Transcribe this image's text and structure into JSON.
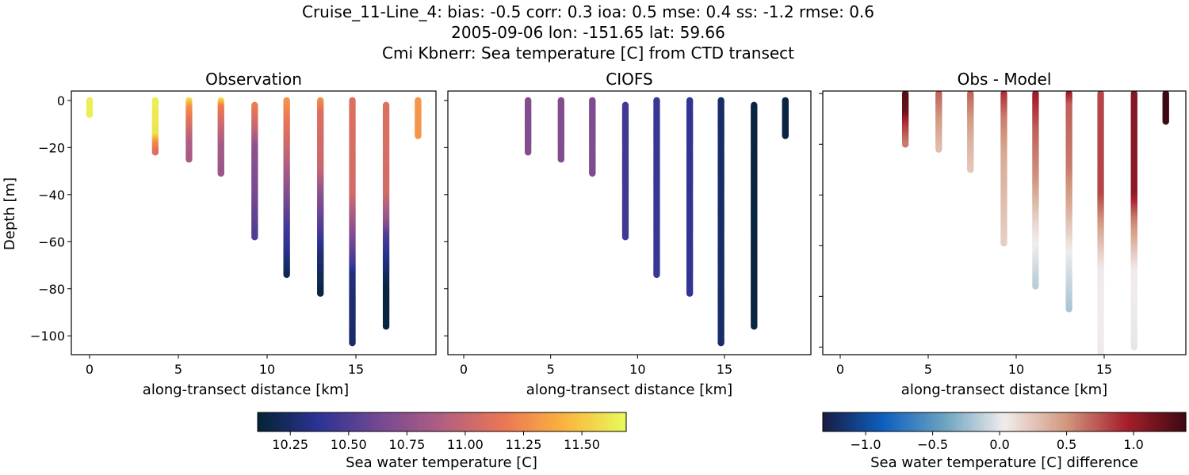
{
  "title_lines": [
    "Cruise_11-Line_4: bias: -0.5  corr: 0.3  ioa: 0.5  mse: 0.4  ss: -1.2  rmse: 0.6",
    "2005-09-06 lon: -151.65 lat: 59.66",
    "Cmi Kbnerr: Sea temperature [C] from CTD transect"
  ],
  "chart_data": [
    {
      "type": "scatter",
      "title": "Observation",
      "xlabel": "along-transect distance [km]",
      "ylabel": "Depth [m]",
      "xlim": [
        -1,
        19.5
      ],
      "ylim": [
        -108,
        4
      ],
      "xticks": [
        0,
        5,
        10,
        15
      ],
      "yticks": [
        0,
        -20,
        -40,
        -60,
        -80,
        -100
      ],
      "colormap": "thermal",
      "stations": [
        {
          "x": 0.0,
          "profile": [
            [
              0,
              11.65
            ],
            [
              6,
              11.65
            ]
          ]
        },
        {
          "x": 3.7,
          "profile": [
            [
              0,
              11.65
            ],
            [
              15,
              11.6
            ],
            [
              18,
              11.3
            ],
            [
              22,
              11.1
            ]
          ]
        },
        {
          "x": 5.6,
          "profile": [
            [
              0,
              11.6
            ],
            [
              3,
              11.3
            ],
            [
              10,
              11.1
            ],
            [
              18,
              10.9
            ],
            [
              25,
              10.85
            ]
          ]
        },
        {
          "x": 7.4,
          "profile": [
            [
              0,
              11.6
            ],
            [
              3,
              11.2
            ],
            [
              12,
              11.0
            ],
            [
              20,
              10.85
            ],
            [
              31,
              10.8
            ]
          ]
        },
        {
          "x": 9.3,
          "profile": [
            [
              2,
              11.2
            ],
            [
              12,
              11.0
            ],
            [
              20,
              10.75
            ],
            [
              40,
              10.65
            ],
            [
              58,
              10.5
            ]
          ]
        },
        {
          "x": 11.1,
          "profile": [
            [
              0,
              11.3
            ],
            [
              10,
              11.15
            ],
            [
              25,
              10.95
            ],
            [
              40,
              10.7
            ],
            [
              55,
              10.45
            ],
            [
              65,
              10.35
            ],
            [
              74,
              10.2
            ]
          ]
        },
        {
          "x": 13.0,
          "profile": [
            [
              0,
              11.3
            ],
            [
              5,
              11.1
            ],
            [
              30,
              11.0
            ],
            [
              40,
              10.75
            ],
            [
              55,
              10.5
            ],
            [
              65,
              10.3
            ],
            [
              82,
              10.15
            ]
          ]
        },
        {
          "x": 14.8,
          "profile": [
            [
              0,
              11.1
            ],
            [
              40,
              11.05
            ],
            [
              55,
              10.75
            ],
            [
              70,
              10.45
            ],
            [
              75,
              10.3
            ],
            [
              103,
              10.25
            ]
          ]
        },
        {
          "x": 16.7,
          "profile": [
            [
              2,
              11.1
            ],
            [
              40,
              11.05
            ],
            [
              52,
              10.75
            ],
            [
              58,
              10.5
            ],
            [
              70,
              10.3
            ],
            [
              80,
              10.15
            ],
            [
              96,
              10.15
            ]
          ]
        },
        {
          "x": 18.5,
          "profile": [
            [
              0,
              11.3
            ],
            [
              15,
              11.3
            ]
          ]
        }
      ]
    },
    {
      "type": "scatter",
      "title": "CIOFS",
      "xlabel": "along-transect distance [km]",
      "xlim": [
        -1,
        19.5
      ],
      "ylim": [
        -108,
        4
      ],
      "xticks": [
        0,
        5,
        10,
        15
      ],
      "colormap": "thermal",
      "stations": [
        {
          "x": 3.7,
          "profile": [
            [
              0,
              10.7
            ],
            [
              22,
              10.7
            ]
          ]
        },
        {
          "x": 5.6,
          "profile": [
            [
              0,
              10.7
            ],
            [
              25,
              10.7
            ]
          ]
        },
        {
          "x": 7.4,
          "profile": [
            [
              0,
              10.68
            ],
            [
              31,
              10.68
            ]
          ]
        },
        {
          "x": 9.3,
          "profile": [
            [
              2,
              10.45
            ],
            [
              58,
              10.45
            ]
          ]
        },
        {
          "x": 11.1,
          "profile": [
            [
              0,
              10.42
            ],
            [
              74,
              10.42
            ]
          ]
        },
        {
          "x": 13.0,
          "profile": [
            [
              0,
              10.4
            ],
            [
              82,
              10.4
            ]
          ]
        },
        {
          "x": 14.8,
          "profile": [
            [
              0,
              10.25
            ],
            [
              103,
              10.25
            ]
          ]
        },
        {
          "x": 16.7,
          "profile": [
            [
              2,
              10.15
            ],
            [
              96,
              10.15
            ]
          ]
        },
        {
          "x": 18.5,
          "profile": [
            [
              0,
              10.15
            ],
            [
              15,
              10.15
            ]
          ]
        }
      ]
    },
    {
      "type": "scatter",
      "title": "Obs - Model",
      "xlabel": "along-transect distance [km]",
      "xlim": [
        -1,
        19.5
      ],
      "ylim": [
        -103,
        1
      ],
      "xticks": [
        0,
        5,
        10,
        15
      ],
      "colormap": "balance",
      "stations": [
        {
          "x": 3.7,
          "profile": [
            [
              0,
              1.3
            ],
            [
              8,
              1.2
            ],
            [
              12,
              0.9
            ],
            [
              20,
              0.6
            ]
          ]
        },
        {
          "x": 5.6,
          "profile": [
            [
              0,
              0.7
            ],
            [
              10,
              0.5
            ],
            [
              22,
              0.3
            ]
          ]
        },
        {
          "x": 7.4,
          "profile": [
            [
              0,
              0.7
            ],
            [
              10,
              0.5
            ],
            [
              20,
              0.35
            ],
            [
              30,
              0.25
            ]
          ]
        },
        {
          "x": 9.3,
          "profile": [
            [
              0,
              0.9
            ],
            [
              10,
              0.6
            ],
            [
              25,
              0.4
            ],
            [
              59,
              0.2
            ]
          ]
        },
        {
          "x": 11.1,
          "profile": [
            [
              0,
              1.0
            ],
            [
              15,
              0.7
            ],
            [
              35,
              0.5
            ],
            [
              55,
              0.1
            ],
            [
              76,
              -0.15
            ]
          ]
        },
        {
          "x": 13.0,
          "profile": [
            [
              0,
              1.0
            ],
            [
              5,
              0.7
            ],
            [
              30,
              0.6
            ],
            [
              45,
              0.4
            ],
            [
              65,
              0.0
            ],
            [
              85,
              -0.2
            ]
          ]
        },
        {
          "x": 14.8,
          "profile": [
            [
              0,
              0.8
            ],
            [
              40,
              0.8
            ],
            [
              55,
              0.4
            ],
            [
              70,
              0.05
            ],
            [
              110,
              0.02
            ]
          ]
        },
        {
          "x": 16.7,
          "profile": [
            [
              0,
              1.1
            ],
            [
              40,
              1.05
            ],
            [
              50,
              0.6
            ],
            [
              70,
              0.05
            ],
            [
              100,
              0.0
            ]
          ]
        },
        {
          "x": 18.5,
          "profile": [
            [
              0,
              1.38
            ],
            [
              11,
              1.38
            ]
          ]
        }
      ]
    }
  ],
  "colorbars": [
    {
      "label": "Sea water temperature [C]",
      "range": [
        10.11,
        11.69
      ],
      "ticks": [
        "10.25",
        "10.50",
        "10.75",
        "11.00",
        "11.25",
        "11.50"
      ],
      "colormap": "thermal"
    },
    {
      "label": "Sea water temperature [C] difference",
      "range": [
        -1.32,
        1.39
      ],
      "ticks": [
        "−1.0",
        "−0.5",
        "0.0",
        "0.5",
        "1.0"
      ],
      "colormap": "balance"
    }
  ],
  "tick_labels": {
    "x": [
      "0",
      "5",
      "10",
      "15"
    ],
    "y": [
      "0",
      "−20",
      "−40",
      "−60",
      "−80",
      "−100"
    ]
  },
  "colors": {
    "thermal": [
      "#042333",
      "#2c3395",
      "#744992",
      "#b15f82",
      "#eb7655",
      "#fbb43e",
      "#e8fa5b"
    ],
    "balance": [
      "#181c43",
      "#0e5fc0",
      "#6aa2c0",
      "#f1ecec",
      "#d39a80",
      "#a8202e",
      "#3c0911"
    ]
  }
}
